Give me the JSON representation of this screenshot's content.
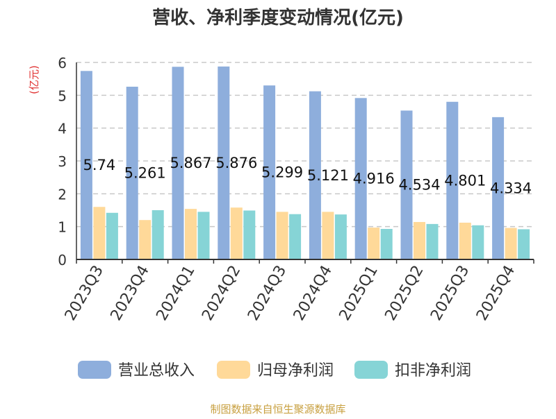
{
  "chart_data": {
    "type": "bar",
    "title": "营收、净利季度变动情况(亿元)",
    "ylabel": "(亿元)",
    "ylim": [
      0,
      6
    ],
    "yticks": [
      0,
      1,
      2,
      3,
      4,
      5,
      6
    ],
    "grid": true,
    "legend_position": "bottom",
    "categories": [
      "2023Q3",
      "2023Q4",
      "2024Q1",
      "2024Q2",
      "2024Q3",
      "2024Q4",
      "2025Q1",
      "2025Q2",
      "2025Q3",
      "2025Q4"
    ],
    "series": [
      {
        "name": "营业总收入",
        "color": "#8eaedc",
        "values": [
          5.74,
          5.261,
          5.867,
          5.876,
          5.299,
          5.121,
          4.916,
          4.534,
          4.801,
          4.334
        ],
        "labels": [
          "5.74",
          "5.261",
          "5.867",
          "5.876",
          "5.299",
          "5.121",
          "4.916",
          "4.534",
          "4.801",
          "4.334"
        ]
      },
      {
        "name": "归母净利润",
        "color": "#ffd999",
        "values": [
          1.6,
          1.2,
          1.54,
          1.58,
          1.45,
          1.45,
          0.97,
          1.14,
          1.12,
          0.96
        ]
      },
      {
        "name": "扣非净利润",
        "color": "#86d4d6",
        "values": [
          1.42,
          1.5,
          1.45,
          1.49,
          1.38,
          1.37,
          0.93,
          1.08,
          1.04,
          0.92
        ]
      }
    ],
    "source": "制图数据来自恒生聚源数据库"
  }
}
